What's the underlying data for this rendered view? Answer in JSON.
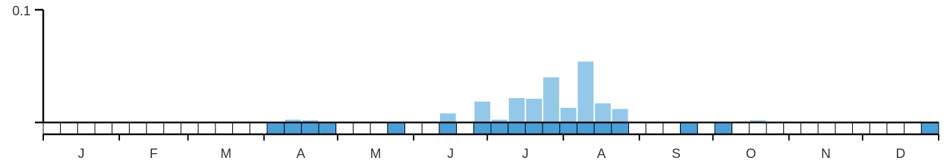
{
  "chart_data": {
    "type": "bar",
    "categories": [
      null,
      null,
      null,
      null,
      null,
      null,
      null,
      null,
      null,
      null,
      null,
      null,
      null,
      null,
      null,
      null,
      null,
      null,
      null,
      null,
      null,
      null,
      null,
      null,
      null,
      null,
      null,
      null,
      null,
      null,
      null,
      null,
      null,
      null,
      null,
      null,
      null,
      null,
      null,
      null,
      null,
      null,
      null,
      null,
      null,
      null,
      null,
      null,
      null,
      null,
      null,
      null
    ],
    "values": [
      0,
      0,
      0,
      0,
      0,
      0,
      0,
      0,
      0,
      0,
      0,
      0,
      0,
      0,
      0.0025,
      0.002,
      0,
      0,
      0,
      0,
      0,
      0,
      0,
      0.008,
      0,
      0.0185,
      0.0025,
      0.0216,
      0.021,
      0.04,
      0.013,
      0.054,
      0.017,
      0.012,
      0,
      0,
      0,
      0,
      0,
      0,
      0,
      0.002,
      0,
      0,
      0,
      0,
      0,
      0,
      0,
      0,
      0,
      0
    ],
    "present": [
      false,
      false,
      false,
      false,
      false,
      false,
      false,
      false,
      false,
      false,
      false,
      false,
      false,
      true,
      true,
      true,
      true,
      false,
      false,
      false,
      true,
      false,
      false,
      true,
      false,
      true,
      true,
      true,
      true,
      true,
      true,
      true,
      true,
      true,
      false,
      false,
      false,
      true,
      false,
      true,
      false,
      false,
      false,
      false,
      false,
      false,
      false,
      false,
      false,
      false,
      false,
      true
    ],
    "months": [
      "J",
      "F",
      "M",
      "A",
      "M",
      "J",
      "J",
      "A",
      "S",
      "O",
      "N",
      "D"
    ],
    "color": "#93c8e8",
    "present_color": "#4a9fd6",
    "ylim": [
      0,
      0.1
    ],
    "yticks": [
      0.1
    ]
  }
}
